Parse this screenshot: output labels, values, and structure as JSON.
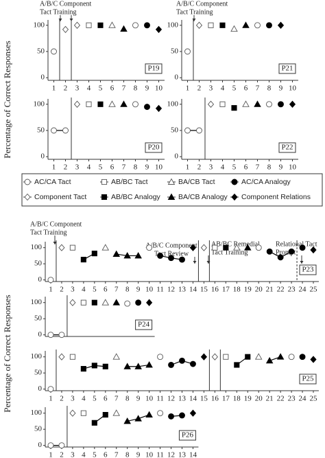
{
  "y_axis_label": "Percentage of Correct Responses",
  "legend": {
    "entries": [
      {
        "name": "AC/CA Tact",
        "marker": "circle",
        "filled": false
      },
      {
        "name": "AB/BC Tact",
        "marker": "square",
        "filled": false
      },
      {
        "name": "BA/CB Tact",
        "marker": "triangle",
        "filled": false
      },
      {
        "name": "AC/CA Analogy",
        "marker": "circle",
        "filled": true
      },
      {
        "name": "Component Tact",
        "marker": "diamond",
        "filled": false
      },
      {
        "name": "AB/BC Analogy",
        "marker": "square",
        "filled": true
      },
      {
        "name": "BA/CB Analogy",
        "marker": "triangle",
        "filled": true
      },
      {
        "name": "Component Relations",
        "marker": "diamond",
        "filled": true
      }
    ]
  },
  "chart_data": [
    {
      "type": "scatter",
      "title": "P19",
      "xlim": [
        0.5,
        10.5
      ],
      "xticks": [
        1,
        2,
        3,
        4,
        5,
        6,
        7,
        8,
        9,
        10
      ],
      "ylim": [
        -5,
        105
      ],
      "yticks": [
        0,
        50,
        100
      ],
      "phase_lines": [
        1.5,
        2.5
      ],
      "prompt_lines": [],
      "annotations": [
        [
          "A/B/C Component",
          "Tact Training"
        ]
      ],
      "series": [
        {
          "x": [
            1,
            8
          ],
          "values": [
            50,
            100
          ]
        },
        {
          "x": [
            4
          ],
          "values": [
            100
          ]
        },
        {
          "x": [
            6
          ],
          "values": [
            100
          ]
        },
        {
          "x": [
            9
          ],
          "values": [
            100
          ]
        },
        {
          "x": [
            2,
            3
          ],
          "values": [
            92,
            100
          ]
        },
        {
          "x": [
            5
          ],
          "values": [
            100
          ]
        },
        {
          "x": [
            7
          ],
          "values": [
            93
          ]
        },
        {
          "x": [
            10
          ],
          "values": [
            92
          ]
        }
      ]
    },
    {
      "type": "scatter",
      "title": "P21",
      "xlim": [
        0.5,
        10.5
      ],
      "xticks": [
        1,
        2,
        3,
        4,
        5,
        6,
        7,
        8,
        9,
        10
      ],
      "ylim": [
        -5,
        105
      ],
      "yticks": [
        0,
        50,
        100
      ],
      "phase_lines": [
        1.5
      ],
      "prompt_lines": [],
      "annotations": [
        [
          "A/B/C Component",
          "Tact Training"
        ]
      ],
      "series": [
        {
          "x": [
            1,
            7
          ],
          "values": [
            50,
            100
          ]
        },
        {
          "x": [
            3
          ],
          "values": [
            100
          ]
        },
        {
          "x": [
            5
          ],
          "values": [
            93
          ]
        },
        {
          "x": [
            8
          ],
          "values": [
            100
          ]
        },
        {
          "x": [
            2
          ],
          "values": [
            100
          ]
        },
        {
          "x": [
            4
          ],
          "values": [
            100
          ]
        },
        {
          "x": [
            6
          ],
          "values": [
            100
          ]
        },
        {
          "x": [
            9
          ],
          "values": [
            100
          ]
        }
      ]
    },
    {
      "type": "scatter",
      "title": "P20",
      "xlim": [
        0.5,
        10.5
      ],
      "xticks": [
        1,
        2,
        3,
        4,
        5,
        6,
        7,
        8,
        9,
        10
      ],
      "ylim": [
        -5,
        105
      ],
      "yticks": [
        0,
        50,
        100
      ],
      "phase_lines": [
        2.5
      ],
      "prompt_lines": [],
      "annotations": [],
      "series": [
        {
          "x": [
            1,
            2,
            8
          ],
          "values": [
            50,
            50,
            100
          ]
        },
        {
          "x": [
            4
          ],
          "values": [
            100
          ]
        },
        {
          "x": [
            6
          ],
          "values": [
            100
          ]
        },
        {
          "x": [
            9
          ],
          "values": [
            95
          ]
        },
        {
          "x": [
            3
          ],
          "values": [
            100
          ]
        },
        {
          "x": [
            5
          ],
          "values": [
            100
          ]
        },
        {
          "x": [
            7
          ],
          "values": [
            100
          ]
        },
        {
          "x": [
            10
          ],
          "values": [
            92
          ]
        }
      ]
    },
    {
      "type": "scatter",
      "title": "P22",
      "xlim": [
        0.5,
        10.5
      ],
      "xticks": [
        1,
        2,
        3,
        4,
        5,
        6,
        7,
        8,
        9,
        10
      ],
      "ylim": [
        -5,
        105
      ],
      "yticks": [
        0,
        50,
        100
      ],
      "phase_lines": [
        2.5
      ],
      "prompt_lines": [],
      "annotations": [],
      "series": [
        {
          "x": [
            1,
            2,
            8
          ],
          "values": [
            50,
            50,
            100
          ]
        },
        {
          "x": [
            4
          ],
          "values": [
            100
          ]
        },
        {
          "x": [
            6
          ],
          "values": [
            100
          ]
        },
        {
          "x": [
            9
          ],
          "values": [
            100
          ]
        },
        {
          "x": [
            3
          ],
          "values": [
            100
          ]
        },
        {
          "x": [
            5
          ],
          "values": [
            93
          ]
        },
        {
          "x": [
            7
          ],
          "values": [
            100
          ]
        },
        {
          "x": [
            10
          ],
          "values": [
            100
          ]
        }
      ]
    },
    {
      "type": "scatter",
      "title": "P23",
      "xlim": [
        0.5,
        25.5
      ],
      "xticks": [
        1,
        2,
        3,
        4,
        5,
        6,
        7,
        8,
        9,
        10,
        11,
        12,
        13,
        14,
        15,
        16,
        17,
        18,
        19,
        20,
        21,
        22,
        23,
        24,
        25
      ],
      "ylim": [
        -5,
        110
      ],
      "yticks": [
        0,
        50,
        100
      ],
      "phase_lines": [
        1.5,
        14.5,
        15.5
      ],
      "prompt_lines": [
        23.5
      ],
      "annotations": [
        [
          "A/B/C Component",
          "Tact Training"
        ],
        [
          "A/B/C Component",
          "Tact Review"
        ],
        [
          "AB/BC Remedial",
          "Tact Training"
        ],
        [
          "Relational Tact",
          "Prompt"
        ]
      ],
      "series": [
        {
          "x": [
            1,
            10,
            20
          ],
          "values": [
            0,
            100,
            100
          ]
        },
        {
          "x": [
            3,
            16
          ],
          "values": [
            100,
            100
          ]
        },
        {
          "x": [
            6,
            18
          ],
          "values": [
            100,
            100
          ]
        },
        {
          "x": [
            11,
            12,
            13,
            21,
            22,
            23,
            24
          ],
          "values": [
            75,
            68,
            63,
            88,
            70,
            88,
            100
          ]
        },
        {
          "x": [
            2,
            15
          ],
          "values": [
            100,
            100
          ]
        },
        {
          "x": [
            4,
            5,
            17
          ],
          "values": [
            63,
            82,
            100
          ]
        },
        {
          "x": [
            7,
            8,
            9,
            19
          ],
          "values": [
            80,
            75,
            75,
            100
          ]
        },
        {
          "x": [
            14,
            25
          ],
          "values": [
            100,
            93
          ]
        }
      ]
    },
    {
      "type": "scatter",
      "title": "P24",
      "xlim": [
        0.5,
        10.5
      ],
      "xticks": [],
      "ylim": [
        -5,
        110
      ],
      "yticks": [
        0,
        50,
        100
      ],
      "phase_lines": [
        2.5
      ],
      "prompt_lines": [],
      "annotations": [],
      "series": [
        {
          "x": [
            1,
            2,
            8
          ],
          "values": [
            0,
            0,
            97
          ]
        },
        {
          "x": [
            4
          ],
          "values": [
            100
          ]
        },
        {
          "x": [
            6
          ],
          "values": [
            100
          ]
        },
        {
          "x": [
            9
          ],
          "values": [
            100
          ]
        },
        {
          "x": [
            3
          ],
          "values": [
            100
          ]
        },
        {
          "x": [
            5
          ],
          "values": [
            100
          ]
        },
        {
          "x": [
            7
          ],
          "values": [
            100
          ]
        },
        {
          "x": [
            10
          ],
          "values": [
            100
          ]
        }
      ]
    },
    {
      "type": "scatter",
      "title": "P25",
      "xlim": [
        0.5,
        25.5
      ],
      "xticks": [
        1,
        2,
        3,
        4,
        5,
        6,
        7,
        8,
        9,
        10,
        11,
        12,
        13,
        14,
        15,
        16,
        17,
        18,
        19,
        20,
        21,
        22,
        23,
        24,
        25
      ],
      "ylim": [
        -5,
        110
      ],
      "yticks": [
        0,
        50,
        100
      ],
      "phase_lines": [
        1.5,
        15.5,
        16.5
      ],
      "prompt_lines": [],
      "annotations": [],
      "series": [
        {
          "x": [
            1,
            11,
            23
          ],
          "values": [
            0,
            100,
            100
          ]
        },
        {
          "x": [
            3,
            17
          ],
          "values": [
            100,
            100
          ]
        },
        {
          "x": [
            7,
            20
          ],
          "values": [
            100,
            100
          ]
        },
        {
          "x": [
            12,
            13,
            14,
            24
          ],
          "values": [
            75,
            88,
            78,
            100
          ]
        },
        {
          "x": [
            2,
            16
          ],
          "values": [
            100,
            100
          ]
        },
        {
          "x": [
            4,
            5,
            6,
            18,
            19
          ],
          "values": [
            63,
            73,
            70,
            75,
            100
          ]
        },
        {
          "x": [
            8,
            9,
            10,
            21,
            22
          ],
          "values": [
            70,
            70,
            75,
            88,
            100
          ]
        },
        {
          "x": [
            15,
            25
          ],
          "values": [
            100,
            92
          ]
        }
      ]
    },
    {
      "type": "scatter",
      "title": "P26",
      "xlim": [
        0.5,
        14.5
      ],
      "xticks": [
        1,
        2,
        3,
        4,
        5,
        6,
        7,
        8,
        9,
        10,
        11,
        12,
        13,
        14
      ],
      "ylim": [
        -5,
        110
      ],
      "yticks": [
        0,
        50,
        100
      ],
      "phase_lines": [
        2.5
      ],
      "prompt_lines": [],
      "annotations": [],
      "series": [
        {
          "x": [
            1,
            2,
            11
          ],
          "values": [
            0,
            0,
            100
          ]
        },
        {
          "x": [
            4
          ],
          "values": [
            100
          ]
        },
        {
          "x": [
            7
          ],
          "values": [
            100
          ]
        },
        {
          "x": [
            12,
            13
          ],
          "values": [
            90,
            93
          ]
        },
        {
          "x": [
            3
          ],
          "values": [
            100
          ]
        },
        {
          "x": [
            5,
            6
          ],
          "values": [
            70,
            95
          ]
        },
        {
          "x": [
            8,
            9,
            10
          ],
          "values": [
            75,
            83,
            95
          ]
        },
        {
          "x": [
            14
          ],
          "values": [
            100
          ]
        }
      ]
    }
  ]
}
